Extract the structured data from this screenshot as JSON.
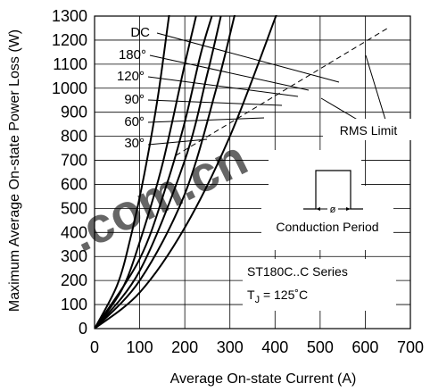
{
  "watermark": {
    "text": ".com.cn",
    "color": "#e03020"
  },
  "chart_data": {
    "type": "line",
    "title": "",
    "xlabel": "Average On-state Current (A)",
    "ylabel": "Maximum Average On-state Power Loss (W)",
    "xlim": [
      0,
      700
    ],
    "ylim": [
      0,
      1300
    ],
    "x_ticks": [
      "0",
      "100",
      "200",
      "300",
      "400",
      "500",
      "600",
      "700"
    ],
    "y_ticks": [
      "0",
      "100",
      "200",
      "300",
      "400",
      "500",
      "600",
      "700",
      "800",
      "900",
      "1000",
      "1100",
      "1200",
      "1300"
    ],
    "grid": true,
    "series": [
      {
        "name": "DC",
        "points": [
          [
            0,
            0
          ],
          [
            100,
            150
          ],
          [
            200,
            420
          ],
          [
            300,
            800
          ],
          [
            400,
            1290
          ],
          [
            420,
            1400
          ]
        ]
      },
      {
        "name": "180°",
        "points": [
          [
            0,
            0
          ],
          [
            100,
            200
          ],
          [
            200,
            560
          ],
          [
            270,
            1000
          ],
          [
            310,
            1300
          ],
          [
            330,
            1450
          ]
        ]
      },
      {
        "name": "120°",
        "points": [
          [
            0,
            0
          ],
          [
            100,
            240
          ],
          [
            200,
            700
          ],
          [
            250,
            1060
          ],
          [
            280,
            1300
          ]
        ]
      },
      {
        "name": "90°",
        "points": [
          [
            0,
            0
          ],
          [
            100,
            290
          ],
          [
            160,
            600
          ],
          [
            200,
            860
          ],
          [
            235,
            1140
          ],
          [
            260,
            1300
          ]
        ]
      },
      {
        "name": "60°",
        "points": [
          [
            0,
            0
          ],
          [
            60,
            160
          ],
          [
            100,
            360
          ],
          [
            150,
            680
          ],
          [
            200,
            1100
          ],
          [
            225,
            1300
          ]
        ]
      },
      {
        "name": "30°",
        "points": [
          [
            0,
            0
          ],
          [
            50,
            180
          ],
          [
            80,
            380
          ],
          [
            110,
            640
          ],
          [
            140,
            960
          ],
          [
            165,
            1300
          ],
          [
            175,
            1420
          ]
        ]
      }
    ],
    "rms_limit": [
      [
        180,
        720
      ],
      [
        650,
        1250
      ]
    ],
    "angle_labels": [
      "DC",
      "180°",
      "120°",
      "90°",
      "60°",
      "30°"
    ],
    "annotations": {
      "rms_limit": "RMS Limit",
      "conduction_period": "Conduction Period",
      "phi": "ø",
      "series_name": "ST180C..C Series",
      "tj_prefix": "T",
      "tj_sub": "J",
      "tj_value": " = 125˚C"
    }
  }
}
